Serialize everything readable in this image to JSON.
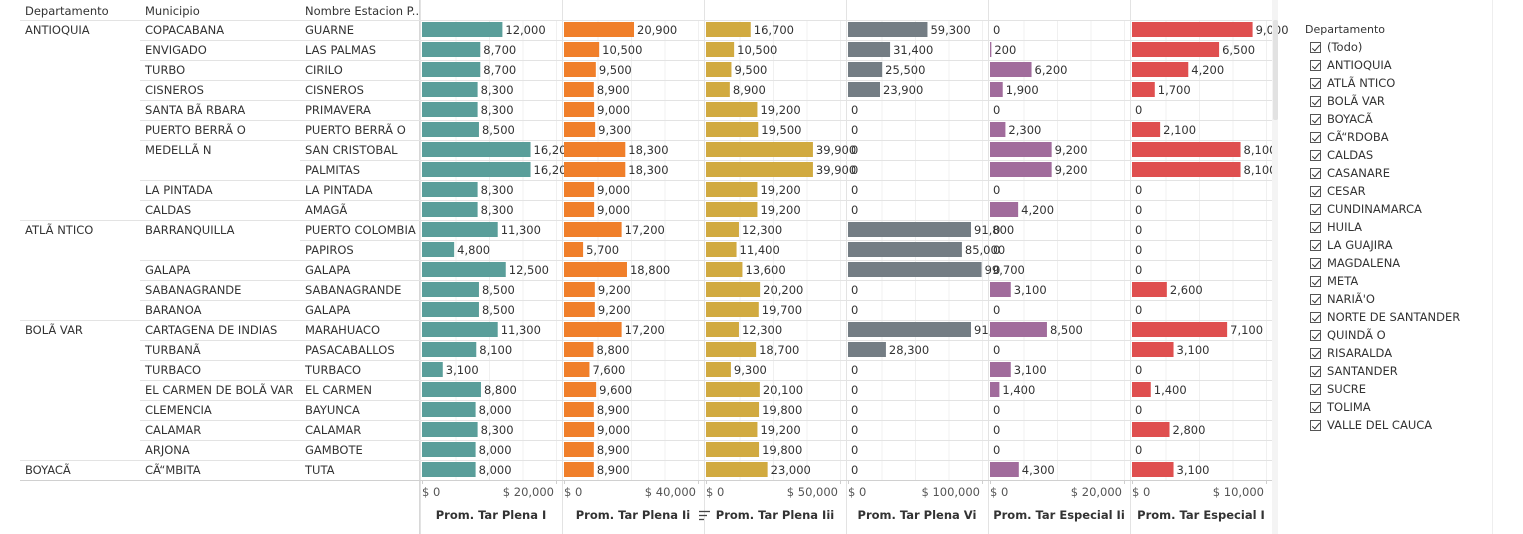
{
  "headers": {
    "departamento": "Departamento",
    "municipio": "Municipio",
    "estacion": "Nombre Estacion P.."
  },
  "sort_icon": "sort-descending-icon",
  "colors": {
    "plena_i": "#5a9e9a",
    "plena_ii": "#f07f2a",
    "plena_iii": "#d1aa40",
    "plena_vi": "#747d84",
    "especial_ii": "#a16c9c",
    "especial_i": "#df4f4f"
  },
  "filter": {
    "title": "Departamento",
    "items": [
      "(Todo)",
      "ANTIOQUIA",
      "ATLÃ NTICO",
      "BOLÃ VAR",
      "BOYACÃ",
      "CÃ“RDOBA",
      "CALDAS",
      "CASANARE",
      "CESAR",
      "CUNDINAMARCA",
      "HUILA",
      "LA GUAJIRA",
      "MAGDALENA",
      "META",
      "NARIÃ'O",
      "NORTE DE SANTANDER",
      "QUINDÃ O",
      "RISARALDA",
      "SANTANDER",
      "SUCRE",
      "TOLIMA",
      "VALLE DEL CAUCA"
    ]
  },
  "chart_data": {
    "type": "bar",
    "orientation": "horizontal",
    "value_format": "thousands-comma",
    "rows": [
      {
        "departamento": "ANTIOQUIA",
        "municipio": "COPACABANA",
        "estacion": "GUARNE"
      },
      {
        "departamento": "",
        "municipio": "ENVIGADO",
        "estacion": "LAS PALMAS"
      },
      {
        "departamento": "",
        "municipio": "TURBO",
        "estacion": "CIRILO"
      },
      {
        "departamento": "",
        "municipio": "CISNEROS",
        "estacion": "CISNEROS"
      },
      {
        "departamento": "",
        "municipio": "SANTA BÃ  RBARA",
        "estacion": "PRIMAVERA"
      },
      {
        "departamento": "",
        "municipio": "PUERTO BERRÃ  O",
        "estacion": "PUERTO BERRÃ  O"
      },
      {
        "departamento": "",
        "municipio": "MEDELLÃ  N",
        "estacion": "SAN CRISTOBAL"
      },
      {
        "departamento": "",
        "municipio": "",
        "estacion": "PALMITAS"
      },
      {
        "departamento": "",
        "municipio": "LA PINTADA",
        "estacion": "LA PINTADA"
      },
      {
        "departamento": "",
        "municipio": "CALDAS",
        "estacion": "AMAGÃ"
      },
      {
        "departamento": "ATLÃ  NTICO",
        "municipio": "BARRANQUILLA",
        "estacion": "PUERTO COLOMBIA"
      },
      {
        "departamento": "",
        "municipio": "",
        "estacion": "PAPIROS"
      },
      {
        "departamento": "",
        "municipio": "GALAPA",
        "estacion": "GALAPA"
      },
      {
        "departamento": "",
        "municipio": "SABANAGRANDE",
        "estacion": "SABANAGRANDE"
      },
      {
        "departamento": "",
        "municipio": "BARANOA",
        "estacion": "GALAPA"
      },
      {
        "departamento": "BOLÃ  VAR",
        "municipio": "CARTAGENA DE INDIAS",
        "estacion": "MARAHUACO"
      },
      {
        "departamento": "",
        "municipio": "TURBANÃ",
        "estacion": "PASACABALLOS"
      },
      {
        "departamento": "",
        "municipio": "TURBACO",
        "estacion": "TURBACO"
      },
      {
        "departamento": "",
        "municipio": "EL CARMEN DE BOLÃ  VAR",
        "estacion": "EL CARMEN"
      },
      {
        "departamento": "",
        "municipio": "CLEMENCIA",
        "estacion": "BAYUNCA"
      },
      {
        "departamento": "",
        "municipio": "CALAMAR",
        "estacion": "CALAMAR"
      },
      {
        "departamento": "",
        "municipio": "ARJONA",
        "estacion": "GAMBOTE"
      },
      {
        "departamento": "BOYACÃ",
        "municipio": "CÃ“MBITA",
        "estacion": "TUTA"
      }
    ],
    "series": [
      {
        "name": "Prom. Tar Plena I",
        "color": "#5a9e9a",
        "max": 20000,
        "ticks": [
          "$ 0",
          "$ 20,000"
        ],
        "tick_values": [
          0,
          20000
        ],
        "values": [
          12000,
          8700,
          8700,
          8300,
          8300,
          8500,
          16200,
          16200,
          8300,
          8300,
          11300,
          4800,
          12500,
          8500,
          8500,
          11300,
          8100,
          3100,
          8800,
          8000,
          8300,
          8000,
          8000
        ]
      },
      {
        "name": "Prom. Tar Plena Ii",
        "color": "#f07f2a",
        "max": 40000,
        "ticks": [
          "$ 0",
          "$ 40,000"
        ],
        "tick_values": [
          0,
          40000
        ],
        "sorted": true,
        "values": [
          20900,
          10500,
          9500,
          8900,
          9000,
          9300,
          18300,
          18300,
          9000,
          9000,
          17200,
          5700,
          18800,
          9200,
          9200,
          17200,
          8800,
          7600,
          9600,
          8900,
          9000,
          8900,
          8900
        ]
      },
      {
        "name": "Prom. Tar Plena Iii",
        "color": "#d1aa40",
        "max": 50000,
        "ticks": [
          "$ 0",
          "$ 50,000"
        ],
        "tick_values": [
          0,
          50000
        ],
        "values": [
          16700,
          10500,
          9500,
          8900,
          19200,
          19500,
          39900,
          39900,
          19200,
          19200,
          12300,
          11400,
          13600,
          20200,
          19700,
          12300,
          18700,
          9300,
          20100,
          19800,
          19200,
          19800,
          23000
        ]
      },
      {
        "name": "Prom. Tar Plena Vi",
        "color": "#747d84",
        "max": 100000,
        "ticks": [
          "$ 0",
          "$ 100,000"
        ],
        "tick_values": [
          0,
          100000
        ],
        "values": [
          59300,
          31400,
          25500,
          23900,
          0,
          0,
          0,
          0,
          0,
          0,
          91800,
          85000,
          99700,
          0,
          0,
          91800,
          28300,
          0,
          0,
          0,
          0,
          0,
          0
        ]
      },
      {
        "name": "Prom. Tar Especial Ii",
        "color": "#a16c9c",
        "max": 20000,
        "ticks": [
          "$ 0",
          "$ 20,000"
        ],
        "tick_values": [
          0,
          20000
        ],
        "values": [
          0,
          200,
          6200,
          1900,
          0,
          2300,
          9200,
          9200,
          0,
          4200,
          0,
          0,
          0,
          3100,
          0,
          8500,
          0,
          3100,
          1400,
          0,
          0,
          0,
          4300
        ]
      },
      {
        "name": "Prom. Tar Especial I",
        "color": "#df4f4f",
        "max": 10000,
        "ticks": [
          "$ 0",
          "$ 10,000"
        ],
        "tick_values": [
          0,
          10000
        ],
        "values": [
          9000,
          6500,
          4200,
          1700,
          0,
          2100,
          8100,
          8100,
          0,
          0,
          0,
          0,
          0,
          2600,
          0,
          7100,
          3100,
          0,
          1400,
          0,
          2800,
          0,
          3100
        ]
      }
    ]
  }
}
